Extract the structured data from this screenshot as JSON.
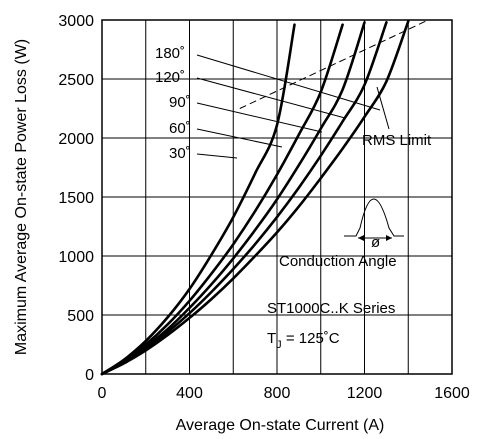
{
  "chart_data": {
    "type": "line",
    "xlabel": "Average On-state Current (A)",
    "ylabel": "Maximum Average On-state Power Loss (W)",
    "xlim": [
      0,
      1600
    ],
    "ylim": [
      0,
      3000
    ],
    "x_ticks": [
      0,
      400,
      800,
      1200,
      1600
    ],
    "y_ticks": [
      0,
      500,
      1000,
      1500,
      2000,
      2500,
      3000
    ],
    "grid": true,
    "series": [
      {
        "name": "180°",
        "x": [
          0,
          100,
          200,
          300,
          400,
          500,
          600,
          700,
          800,
          880
        ],
        "y": [
          0,
          120,
          280,
          480,
          720,
          1010,
          1330,
          1700,
          2110,
          2960
        ]
      },
      {
        "name": "120°",
        "x": [
          0,
          100,
          200,
          300,
          400,
          500,
          600,
          700,
          800,
          900,
          1000,
          1100
        ],
        "y": [
          0,
          110,
          250,
          420,
          620,
          850,
          1100,
          1380,
          1690,
          2030,
          2390,
          2960
        ]
      },
      {
        "name": "90°",
        "x": [
          0,
          100,
          200,
          300,
          400,
          500,
          600,
          700,
          800,
          900,
          1000,
          1100,
          1200
        ],
        "y": [
          0,
          100,
          230,
          380,
          560,
          760,
          980,
          1220,
          1480,
          1770,
          2080,
          2410,
          2980
        ]
      },
      {
        "name": "60°",
        "x": [
          0,
          100,
          200,
          300,
          400,
          500,
          600,
          700,
          800,
          900,
          1000,
          1100,
          1200,
          1300
        ],
        "y": [
          0,
          95,
          215,
          355,
          515,
          695,
          890,
          1100,
          1330,
          1580,
          1850,
          2140,
          2450,
          2980
        ]
      },
      {
        "name": "30°",
        "x": [
          0,
          100,
          200,
          300,
          400,
          500,
          600,
          700,
          800,
          900,
          1000,
          1100,
          1200,
          1300,
          1400
        ],
        "y": [
          0,
          90,
          200,
          330,
          475,
          635,
          810,
          1000,
          1200,
          1420,
          1660,
          1910,
          2180,
          2480,
          2990
        ]
      }
    ],
    "rms_limit": {
      "x": [
        630,
        1480
      ],
      "y": [
        2250,
        2990
      ]
    },
    "annotations": {
      "rms_limit": "RMS Limit",
      "conduction_angle": "Conduction Angle",
      "phi": "ø",
      "series_name": "ST1000C..K Series",
      "tj_prefix": "T",
      "tj_sub": "J",
      "tj_value": "= 125˚C"
    },
    "angle_labels": [
      "180˚",
      "120˚",
      "90˚",
      "60˚",
      "30˚"
    ]
  }
}
